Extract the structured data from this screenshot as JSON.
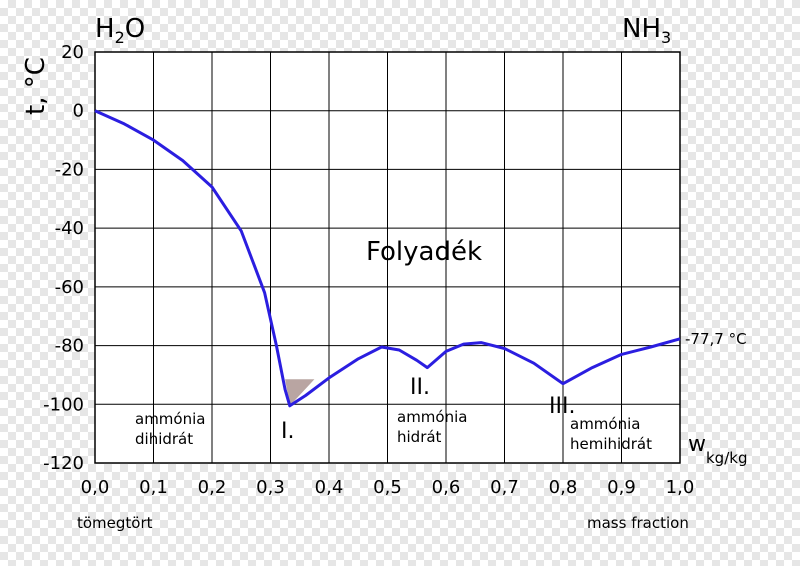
{
  "chart_data": {
    "type": "line",
    "corner_left": {
      "main": "H",
      "sub": "2",
      "tail": "O"
    },
    "corner_right": {
      "main": "NH",
      "sub": "3"
    },
    "ylabel": "t, °C",
    "xlabel_left": "tömegtört",
    "xlabel_right": "mass fraction",
    "w_label": {
      "main": "w",
      "sub": "kg/kg"
    },
    "xlim": [
      0,
      1
    ],
    "ylim": [
      -120,
      20
    ],
    "x_ticks": [
      "0,0",
      "0,1",
      "0,2",
      "0,3",
      "0,4",
      "0,5",
      "0,6",
      "0,7",
      "0,8",
      "0,9",
      "1,0"
    ],
    "y_ticks": [
      "20",
      "0",
      "-20",
      "-40",
      "-60",
      "-80",
      "-100",
      "-120"
    ],
    "grid": true,
    "line_color": "#2b1ee0",
    "series": [
      {
        "points": [
          [
            0.0,
            0.0
          ],
          [
            0.05,
            -4.5
          ],
          [
            0.1,
            -10
          ],
          [
            0.15,
            -17
          ],
          [
            0.2,
            -26
          ],
          [
            0.25,
            -41
          ],
          [
            0.29,
            -62
          ],
          [
            0.31,
            -80
          ],
          [
            0.325,
            -95
          ],
          [
            0.333,
            -100.5
          ],
          [
            0.36,
            -97
          ],
          [
            0.4,
            -91
          ],
          [
            0.45,
            -84.5
          ],
          [
            0.49,
            -80.5
          ],
          [
            0.52,
            -81.5
          ],
          [
            0.55,
            -85
          ],
          [
            0.568,
            -87.5
          ],
          [
            0.6,
            -82
          ],
          [
            0.63,
            -79.5
          ],
          [
            0.66,
            -79
          ],
          [
            0.7,
            -81
          ],
          [
            0.75,
            -86
          ],
          [
            0.8,
            -93
          ],
          [
            0.85,
            -87.5
          ],
          [
            0.9,
            -83
          ],
          [
            0.95,
            -80.5
          ],
          [
            1.0,
            -77.7
          ]
        ]
      }
    ],
    "annotations": {
      "liquid": "Folyadék",
      "melting_point": "-77,7 °C",
      "region_1_roman": "I.",
      "region_2_roman": "II.",
      "region_3_roman": "III.",
      "region_1_line1": "ammónia",
      "region_1_line2": "dihidrát",
      "region_2_line1": "ammónia",
      "region_2_line2": "hidrát",
      "region_3_line1": "ammónia",
      "region_3_line2": "hemihidrát"
    },
    "triangle_color": "#b9a5a2"
  }
}
